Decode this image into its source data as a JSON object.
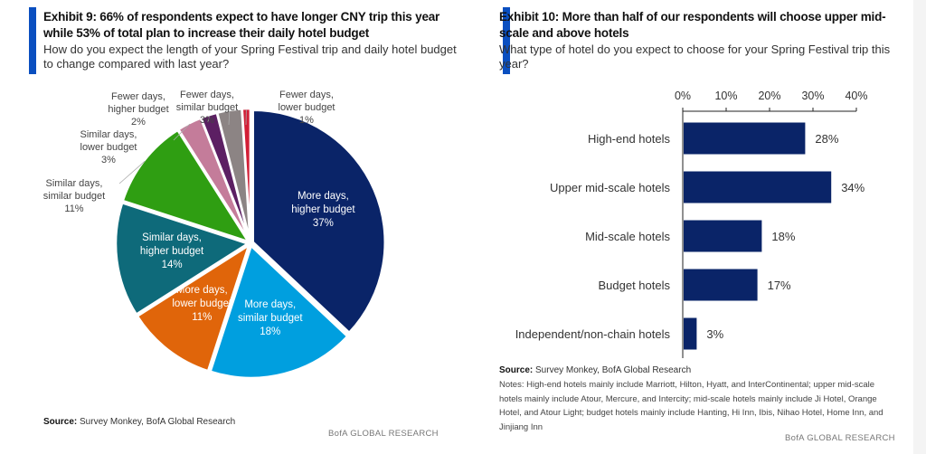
{
  "exhibit9": {
    "title": "Exhibit 9: 66% of respondents expect to have longer CNY trip this year while 53% of total plan to increase their daily hotel budget",
    "subtitle": "How do you expect the length of your Spring Festival trip and daily hotel budget to change compared with last year?",
    "source_label": "Source:",
    "source_text": " Survey Monkey, BofA Global Research",
    "brand": "BofA GLOBAL RESEARCH"
  },
  "exhibit10": {
    "title": "Exhibit 10: More than half of our respondents will choose upper mid-scale and above hotels",
    "subtitle": "What type of hotel do you expect to choose for your Spring Festival trip this year?",
    "source_label": "Source:",
    "source_text": " Survey Monkey, BofA Global Research",
    "notes": "Notes:  High-end hotels mainly include Marriott, Hilton, Hyatt, and InterContinental; upper mid-scale hotels mainly include Atour, Mercure, and Intercity; mid-scale hotels mainly include Ji Hotel, Orange Hotel, and Atour Light; budget hotels mainly include Hanting, Hi Inn, Ibis, Nihao Hotel, Home Inn, and Jinjiang Inn",
    "brand": "BofA GLOBAL RESEARCH"
  },
  "accent_color": "#0a4fc0",
  "chart_data": [
    {
      "type": "pie",
      "title": "Exhibit 9: 66% of respondents expect to have longer CNY trip this year while 53% of total plan to increase their daily hotel budget",
      "start": "12 o'clock, clockwise",
      "slices": [
        {
          "label": "More days, higher budget",
          "value": 37,
          "display": "37%",
          "color": "#0a2468",
          "label_inside": true
        },
        {
          "label": "More days, similar budget",
          "value": 18,
          "display": "18%",
          "color": "#009fdf",
          "label_inside": true
        },
        {
          "label": "More days, lower budget",
          "value": 11,
          "display": "11%",
          "color": "#e0650a",
          "label_inside": true
        },
        {
          "label": "Similar days, higher budget",
          "value": 14,
          "display": "14%",
          "color": "#0e6a7a",
          "label_inside": true
        },
        {
          "label": "Similar days, similar budget",
          "value": 11,
          "display": "11%",
          "color": "#2f9e12",
          "label_inside": false
        },
        {
          "label": "Similar days, lower budget",
          "value": 3,
          "display": "3%",
          "color": "#c47c9a",
          "label_inside": false
        },
        {
          "label": "Fewer days, higher budget",
          "value": 2,
          "display": "2%",
          "color": "#5c1f63",
          "label_inside": false
        },
        {
          "label": "Fewer days, similar budget",
          "value": 3,
          "display": "3%",
          "color": "#8c8484",
          "label_inside": false
        },
        {
          "label": "Fewer days, lower budget",
          "value": 1,
          "display": "1%",
          "color": "#d21e36",
          "label_inside": false
        }
      ]
    },
    {
      "type": "bar",
      "orientation": "horizontal",
      "title": "Exhibit 10: More than half of our respondents will choose upper mid-scale and above hotels",
      "categories": [
        "High-end hotels",
        "Upper mid-scale hotels",
        "Mid-scale hotels",
        "Budget hotels",
        "Independent/non-chain hotels"
      ],
      "values": [
        28,
        34,
        18,
        17,
        3
      ],
      "data_labels": [
        "28%",
        "34%",
        "18%",
        "17%",
        "3%"
      ],
      "xlim": [
        0,
        40
      ],
      "xticks": [
        0,
        10,
        20,
        30,
        40
      ],
      "xtick_labels": [
        "0%",
        "10%",
        "20%",
        "30%",
        "40%"
      ],
      "axis_position": "top",
      "bar_color": "#0a2468",
      "grid": false
    }
  ]
}
